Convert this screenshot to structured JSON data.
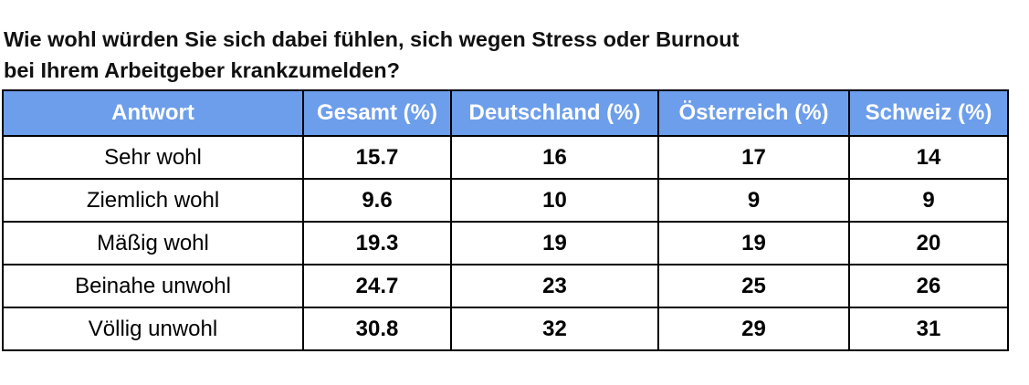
{
  "header": {
    "title_lines": [
      "Wie wohl würden Sie sich dabei fühlen, sich wegen Stress oder Burnout",
      "bei Ihrem Arbeitgeber krankzumelden?"
    ]
  },
  "table": {
    "columns": [
      "Antwort",
      "Gesamt (%)",
      "Deutschland (%)",
      "Österreich (%)",
      "Schweiz (%)"
    ],
    "rows": [
      [
        "Sehr wohl",
        15.7,
        16,
        17,
        14
      ],
      [
        "Ziemlich wohl",
        9.6,
        10,
        9,
        9
      ],
      [
        "Mäßig wohl",
        19.3,
        19,
        19,
        20
      ],
      [
        "Beinahe unwohl",
        24.7,
        23,
        25,
        26
      ],
      [
        "Völlig unwohl",
        30.8,
        32,
        29,
        31
      ]
    ]
  }
}
